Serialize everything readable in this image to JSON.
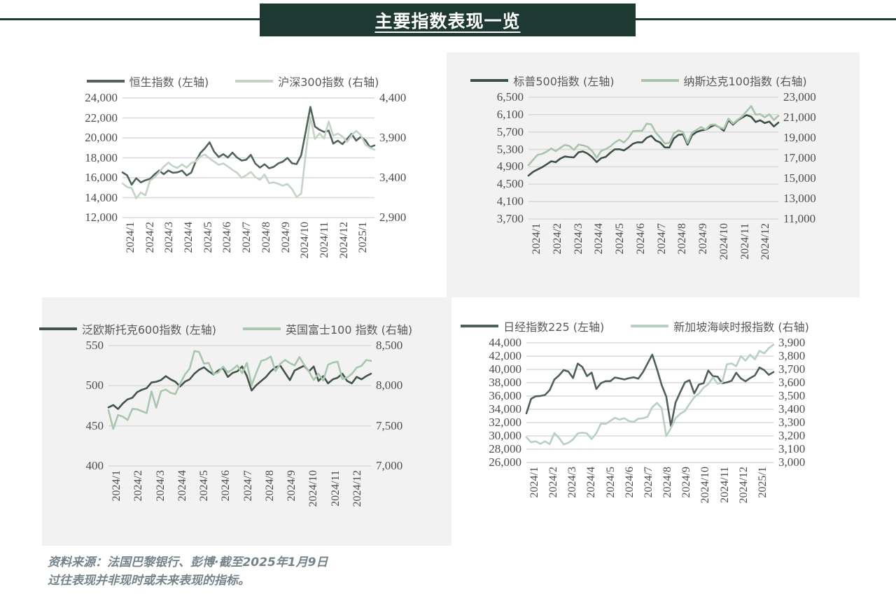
{
  "title": "主要指数表现一览",
  "footer": {
    "line1": "资料来源：法国巴黎银行、彭博·截至2025年1月9日",
    "line2": "过往表现并非现时或未来表现的指标。"
  },
  "colors": {
    "header_bg": "#1e3932",
    "rule": "#1e3932",
    "panel_bg": "#f2f2f2",
    "grid": "#d9d9d9",
    "tick_text": "#4d4d4d",
    "legend_text": "#595959",
    "footer_text": "#75838a"
  },
  "chart_data": [
    {
      "type": "line",
      "grid": true,
      "legend_position": "top",
      "x_labels": [
        "2024/1",
        "2024/2",
        "2024/3",
        "2024/4",
        "2024/5",
        "2024/6",
        "2024/7",
        "2024/8",
        "2024/9",
        "2024/10",
        "2024/11",
        "2024/12",
        "2025/1"
      ],
      "left_axis": {
        "ticks": [
          "24,000",
          "22,000",
          "20,000",
          "18,000",
          "16,000",
          "14,000",
          "12,000"
        ],
        "min": 12000,
        "max": 24000
      },
      "right_axis": {
        "ticks": [
          "4,400",
          "3,900",
          "3,400",
          "2,900"
        ],
        "min": 2900,
        "max": 4400
      },
      "series": [
        {
          "name": "恒生指数 (左轴)",
          "axis": "left",
          "color": "#51635a",
          "values": [
            16535,
            16244,
            15308,
            15952,
            15533,
            15747,
            15884,
            16340,
            16725,
            16353,
            16720,
            16499,
            16541,
            16724,
            16224,
            16512,
            17651,
            18476,
            18964,
            19554,
            18609,
            18080,
            18367,
            18028,
            18520,
            18029,
            17719,
            17800,
            18294,
            17417,
            17021,
            17345,
            16945,
            17090,
            17430,
            17612,
            17989,
            17444,
            17369,
            18259,
            20632,
            23099,
            21133,
            20804,
            20590,
            20728,
            19426,
            19721,
            19366,
            19865,
            20398,
            19720,
            20090,
            19760,
            19064,
            19240
          ]
        },
        {
          "name": "沪深300指数 (右轴)",
          "axis": "right",
          "color": "#c3d3c5",
          "values": [
            3329,
            3284,
            3269,
            3141,
            3215,
            3179,
            3364,
            3404,
            3470,
            3537,
            3590,
            3545,
            3523,
            3567,
            3526,
            3584,
            3604,
            3666,
            3691,
            3641,
            3601,
            3562,
            3579,
            3541,
            3498,
            3462,
            3397,
            3431,
            3472,
            3409,
            3373,
            3442,
            3331,
            3342,
            3324,
            3300,
            3321,
            3258,
            3159,
            3201,
            3704,
            4160,
            3887,
            3956,
            3890,
            4104,
            3925,
            3954,
            3916,
            3847,
            3933,
            3987,
            3935,
            3815,
            3775,
            3752
          ]
        }
      ]
    },
    {
      "type": "line",
      "grid": true,
      "legend_position": "top",
      "x_labels": [
        "2024/1",
        "2024/2",
        "2024/3",
        "2024/4",
        "2024/5",
        "2024/6",
        "2024/7",
        "2024/8",
        "2024/9",
        "2024/10",
        "2024/11",
        "2024/12"
      ],
      "left_axis": {
        "ticks": [
          "6,500",
          "6,100",
          "5,700",
          "5,300",
          "4,900",
          "4,500",
          "4,100",
          "3,700"
        ],
        "min": 3700,
        "max": 6500
      },
      "right_axis": {
        "ticks": [
          "23,000",
          "21,000",
          "19,000",
          "17,000",
          "15,000",
          "13,000",
          "11,000"
        ],
        "min": 11000,
        "max": 23000
      },
      "series": [
        {
          "name": "标普500指数 (左轴)",
          "axis": "left",
          "color": "#3c5048",
          "values": [
            4697,
            4784,
            4840,
            4891,
            4959,
            5027,
            5006,
            5089,
            5137,
            5124,
            5117,
            5234,
            5254,
            5204,
            5123,
            5010,
            5100,
            5128,
            5222,
            5303,
            5305,
            5277,
            5347,
            5431,
            5465,
            5460,
            5567,
            5615,
            5505,
            5459,
            5346,
            5344,
            5554,
            5634,
            5648,
            5408,
            5626,
            5702,
            5738,
            5751,
            5815,
            5865,
            5808,
            5729,
            5973,
            5870,
            5969,
            6032,
            6090,
            6051,
            5931,
            5971,
            5907,
            5942,
            5827,
            5918
          ]
        },
        {
          "name": "纳斯达克100指数 (右轴)",
          "axis": "right",
          "color": "#a9c4ac",
          "values": [
            16306,
            16833,
            17314,
            17421,
            17642,
            17962,
            17686,
            18004,
            18303,
            18198,
            17808,
            18339,
            18254,
            18108,
            17713,
            17037,
            17719,
            17890,
            18161,
            18546,
            18808,
            18536,
            19000,
            19659,
            19700,
            19682,
            20391,
            20331,
            19522,
            19024,
            18441,
            18513,
            19432,
            19721,
            19574,
            18491,
            19514,
            19791,
            20060,
            19793,
            20271,
            20324,
            20033,
            19890,
            20896,
            20394,
            20776,
            21100,
            21622,
            22133,
            21289,
            21326,
            21012,
            21326,
            20758,
            21180
          ]
        }
      ]
    },
    {
      "type": "line",
      "grid": true,
      "legend_position": "top",
      "x_labels": [
        "2024/1",
        "2024/2",
        "2024/3",
        "2024/4",
        "2024/5",
        "2024/6",
        "2024/7",
        "2024/8",
        "2024/9",
        "2024/10",
        "2024/11",
        "2024/12"
      ],
      "left_axis": {
        "ticks": [
          "550",
          "500",
          "450",
          "400"
        ],
        "min": 400,
        "max": 550
      },
      "right_axis": {
        "ticks": [
          "8,500",
          "8,000",
          "7,500",
          "7,000"
        ],
        "min": 7000,
        "max": 8500
      },
      "series": [
        {
          "name": "泛欧斯托克600指数 (左轴)",
          "axis": "left",
          "color": "#41534b",
          "values": [
            473,
            476,
            471,
            478,
            483,
            485,
            492,
            495,
            497,
            504,
            505,
            507,
            512,
            508,
            505,
            499,
            505,
            508,
            515,
            520,
            523,
            518,
            514,
            519,
            522,
            511,
            516,
            518,
            524,
            512,
            494,
            501,
            506,
            511,
            518,
            523,
            525,
            516,
            507,
            519,
            522,
            525,
            518,
            524,
            506,
            512,
            503,
            508,
            510,
            515,
            506,
            503,
            511,
            508,
            512,
            515
          ]
        },
        {
          "name": "英国富士100 指数 (右轴)",
          "axis": "right",
          "color": "#a9c6ae",
          "values": [
            7695,
            7461,
            7635,
            7615,
            7573,
            7712,
            7706,
            7682,
            7659,
            7930,
            7727,
            7931,
            7953,
            7911,
            7896,
            8024,
            8140,
            8213,
            8433,
            8420,
            8275,
            8285,
            8146,
            8164,
            8238,
            8167,
            8204,
            8253,
            8156,
            8285,
            8008,
            8168,
            8311,
            8327,
            8365,
            8181,
            8273,
            8321,
            8282,
            8253,
            8358,
            8262,
            8177,
            8072,
            8149,
            8063,
            8262,
            8289,
            8300,
            8084,
            8102,
            8149,
            8224,
            8248,
            8320,
            8310
          ]
        }
      ]
    },
    {
      "type": "line",
      "grid": true,
      "legend_position": "top",
      "x_labels": [
        "2024/1",
        "2024/2",
        "2024/3",
        "2024/4",
        "2024/5",
        "2024/6",
        "2024/7",
        "2024/8",
        "2024/9",
        "2024/10",
        "2024/11",
        "2024/12",
        "2025/1"
      ],
      "left_axis": {
        "ticks": [
          "44,000",
          "42,000",
          "40,000",
          "38,000",
          "36,000",
          "34,000",
          "32,000",
          "30,000",
          "28,000",
          "26,000"
        ],
        "min": 26000,
        "max": 44000
      },
      "right_axis": {
        "ticks": [
          "3,900",
          "3,800",
          "3,700",
          "3,600",
          "3,500",
          "3,400",
          "3,300",
          "3,200",
          "3,100",
          "3,000"
        ],
        "min": 3000,
        "max": 3900
      },
      "series": [
        {
          "name": "日经指数225 (左轴)",
          "axis": "left",
          "color": "#4e6058",
          "values": [
            33377,
            35577,
            35963,
            36010,
            36158,
            36897,
            38487,
            39099,
            39910,
            39688,
            38708,
            40888,
            40369,
            38992,
            39524,
            37068,
            37935,
            38236,
            38229,
            38788,
            38646,
            38487,
            38683,
            38815,
            38596,
            39583,
            40912,
            42224,
            40063,
            37667,
            35910,
            31458,
            35025,
            36581,
            38062,
            38364,
            36391,
            37723,
            37919,
            39829,
            38982,
            38911,
            37913,
            38053,
            38283,
            39500,
            38642,
            38208,
            38701,
            39091,
            40281,
            39894,
            39190,
            39605
          ]
        },
        {
          "name": "新加坡海峡时报指数 (右轴)",
          "axis": "right",
          "color": "#b9cfc1",
          "values": [
            3190,
            3152,
            3159,
            3140,
            3159,
            3138,
            3221,
            3184,
            3135,
            3148,
            3173,
            3218,
            3224,
            3218,
            3176,
            3220,
            3293,
            3290,
            3313,
            3336,
            3322,
            3333,
            3311,
            3306,
            3329,
            3332,
            3344,
            3416,
            3448,
            3410,
            3198,
            3260,
            3333,
            3366,
            3388,
            3441,
            3491,
            3518,
            3563,
            3589,
            3640,
            3593,
            3601,
            3739,
            3745,
            3724,
            3800,
            3766,
            3811,
            3776,
            3840,
            3821,
            3860,
            3887
          ]
        }
      ]
    }
  ]
}
